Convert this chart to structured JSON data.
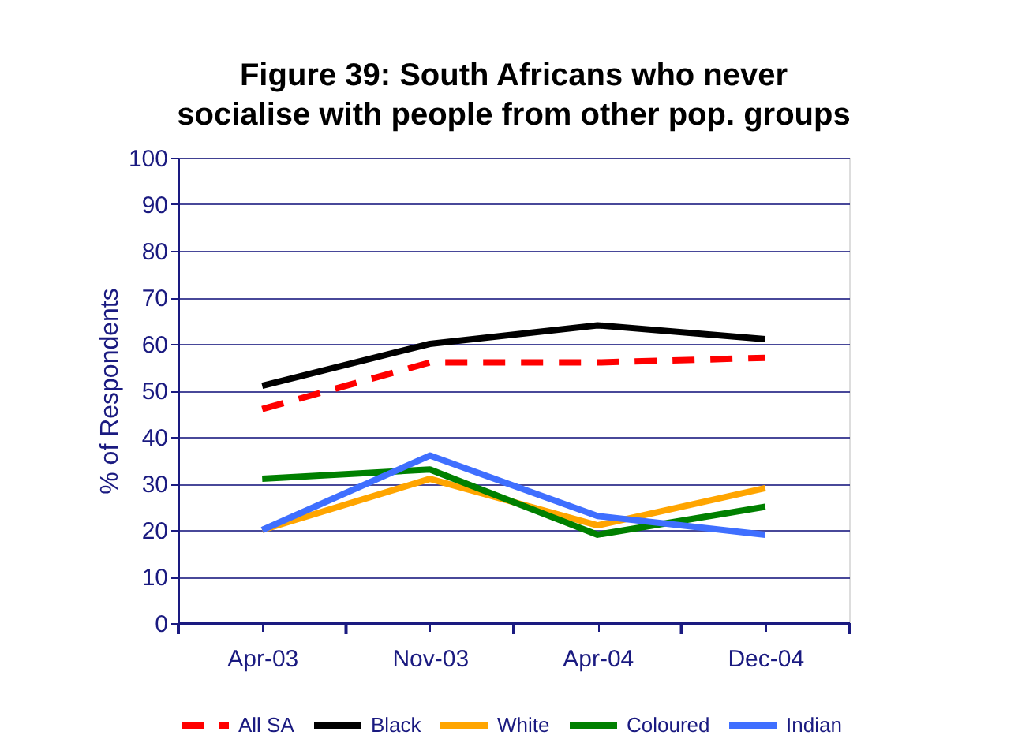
{
  "chart_data": {
    "type": "line",
    "title": "Figure 39: South Africans who never socialise with people from other pop. groups",
    "ylabel": "% of Respondents",
    "categories": [
      "Apr-03",
      "Nov-03",
      "Apr-04",
      "Dec-04"
    ],
    "ylim": [
      0,
      100
    ],
    "yticks": [
      0,
      10,
      20,
      30,
      40,
      50,
      60,
      70,
      80,
      90,
      100
    ],
    "grid": "y",
    "legend": "bottom",
    "marker": "none",
    "series": [
      {
        "name": "All SA",
        "color": "#ff0000",
        "line_style": "dashed",
        "values": [
          46,
          56,
          56,
          57
        ]
      },
      {
        "name": "Black",
        "color": "#000000",
        "line_style": "solid",
        "values": [
          51,
          60,
          64,
          61
        ]
      },
      {
        "name": "White",
        "color": "#ffa500",
        "line_style": "solid",
        "values": [
          20,
          31,
          21,
          29
        ]
      },
      {
        "name": "Coloured",
        "color": "#008000",
        "line_style": "solid",
        "values": [
          31,
          33,
          19,
          25
        ]
      },
      {
        "name": "Indian",
        "color": "#3f6fff",
        "line_style": "solid",
        "values": [
          20,
          36,
          23,
          19
        ]
      }
    ]
  }
}
